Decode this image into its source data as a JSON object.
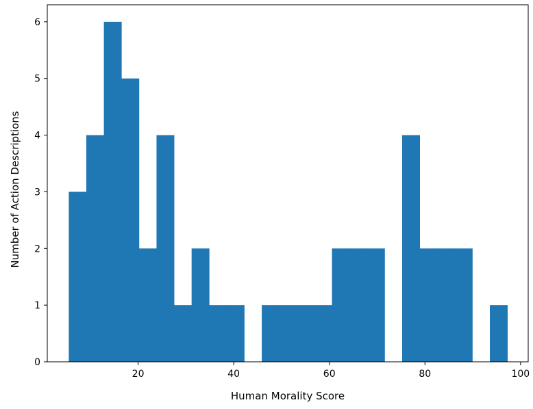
{
  "chart_data": {
    "type": "bar",
    "xlabel": "Human Morality Score",
    "ylabel": "Number of Action Descriptions",
    "bin_width": 3.67,
    "bins": [
      {
        "start": 5.5,
        "end": 9.17,
        "count": 3
      },
      {
        "start": 9.17,
        "end": 12.84,
        "count": 4
      },
      {
        "start": 12.84,
        "end": 16.51,
        "count": 6
      },
      {
        "start": 16.51,
        "end": 20.18,
        "count": 5
      },
      {
        "start": 20.18,
        "end": 23.85,
        "count": 2
      },
      {
        "start": 23.85,
        "end": 27.52,
        "count": 4
      },
      {
        "start": 27.52,
        "end": 31.19,
        "count": 1
      },
      {
        "start": 31.19,
        "end": 34.86,
        "count": 2
      },
      {
        "start": 34.86,
        "end": 38.53,
        "count": 1
      },
      {
        "start": 38.53,
        "end": 42.2,
        "count": 1
      },
      {
        "start": 42.2,
        "end": 45.87,
        "count": 0
      },
      {
        "start": 45.87,
        "end": 49.54,
        "count": 1
      },
      {
        "start": 49.54,
        "end": 53.21,
        "count": 1
      },
      {
        "start": 53.21,
        "end": 56.88,
        "count": 1
      },
      {
        "start": 56.88,
        "end": 60.55,
        "count": 1
      },
      {
        "start": 60.55,
        "end": 64.22,
        "count": 2
      },
      {
        "start": 64.22,
        "end": 67.89,
        "count": 2
      },
      {
        "start": 67.89,
        "end": 71.56,
        "count": 2
      },
      {
        "start": 71.56,
        "end": 75.23,
        "count": 0
      },
      {
        "start": 75.23,
        "end": 78.9,
        "count": 4
      },
      {
        "start": 78.9,
        "end": 82.57,
        "count": 2
      },
      {
        "start": 82.57,
        "end": 86.24,
        "count": 2
      },
      {
        "start": 86.24,
        "end": 89.91,
        "count": 2
      },
      {
        "start": 89.91,
        "end": 93.58,
        "count": 0
      },
      {
        "start": 93.58,
        "end": 97.25,
        "count": 1
      }
    ],
    "xlim": [
      1.0,
      101.6
    ],
    "ylim": [
      0,
      6.3
    ],
    "xticks": [
      20,
      40,
      60,
      80,
      100
    ],
    "yticks": [
      0,
      1,
      2,
      3,
      4,
      5,
      6
    ],
    "bar_color": "#1f77b4",
    "grid": false,
    "legend": "none"
  }
}
